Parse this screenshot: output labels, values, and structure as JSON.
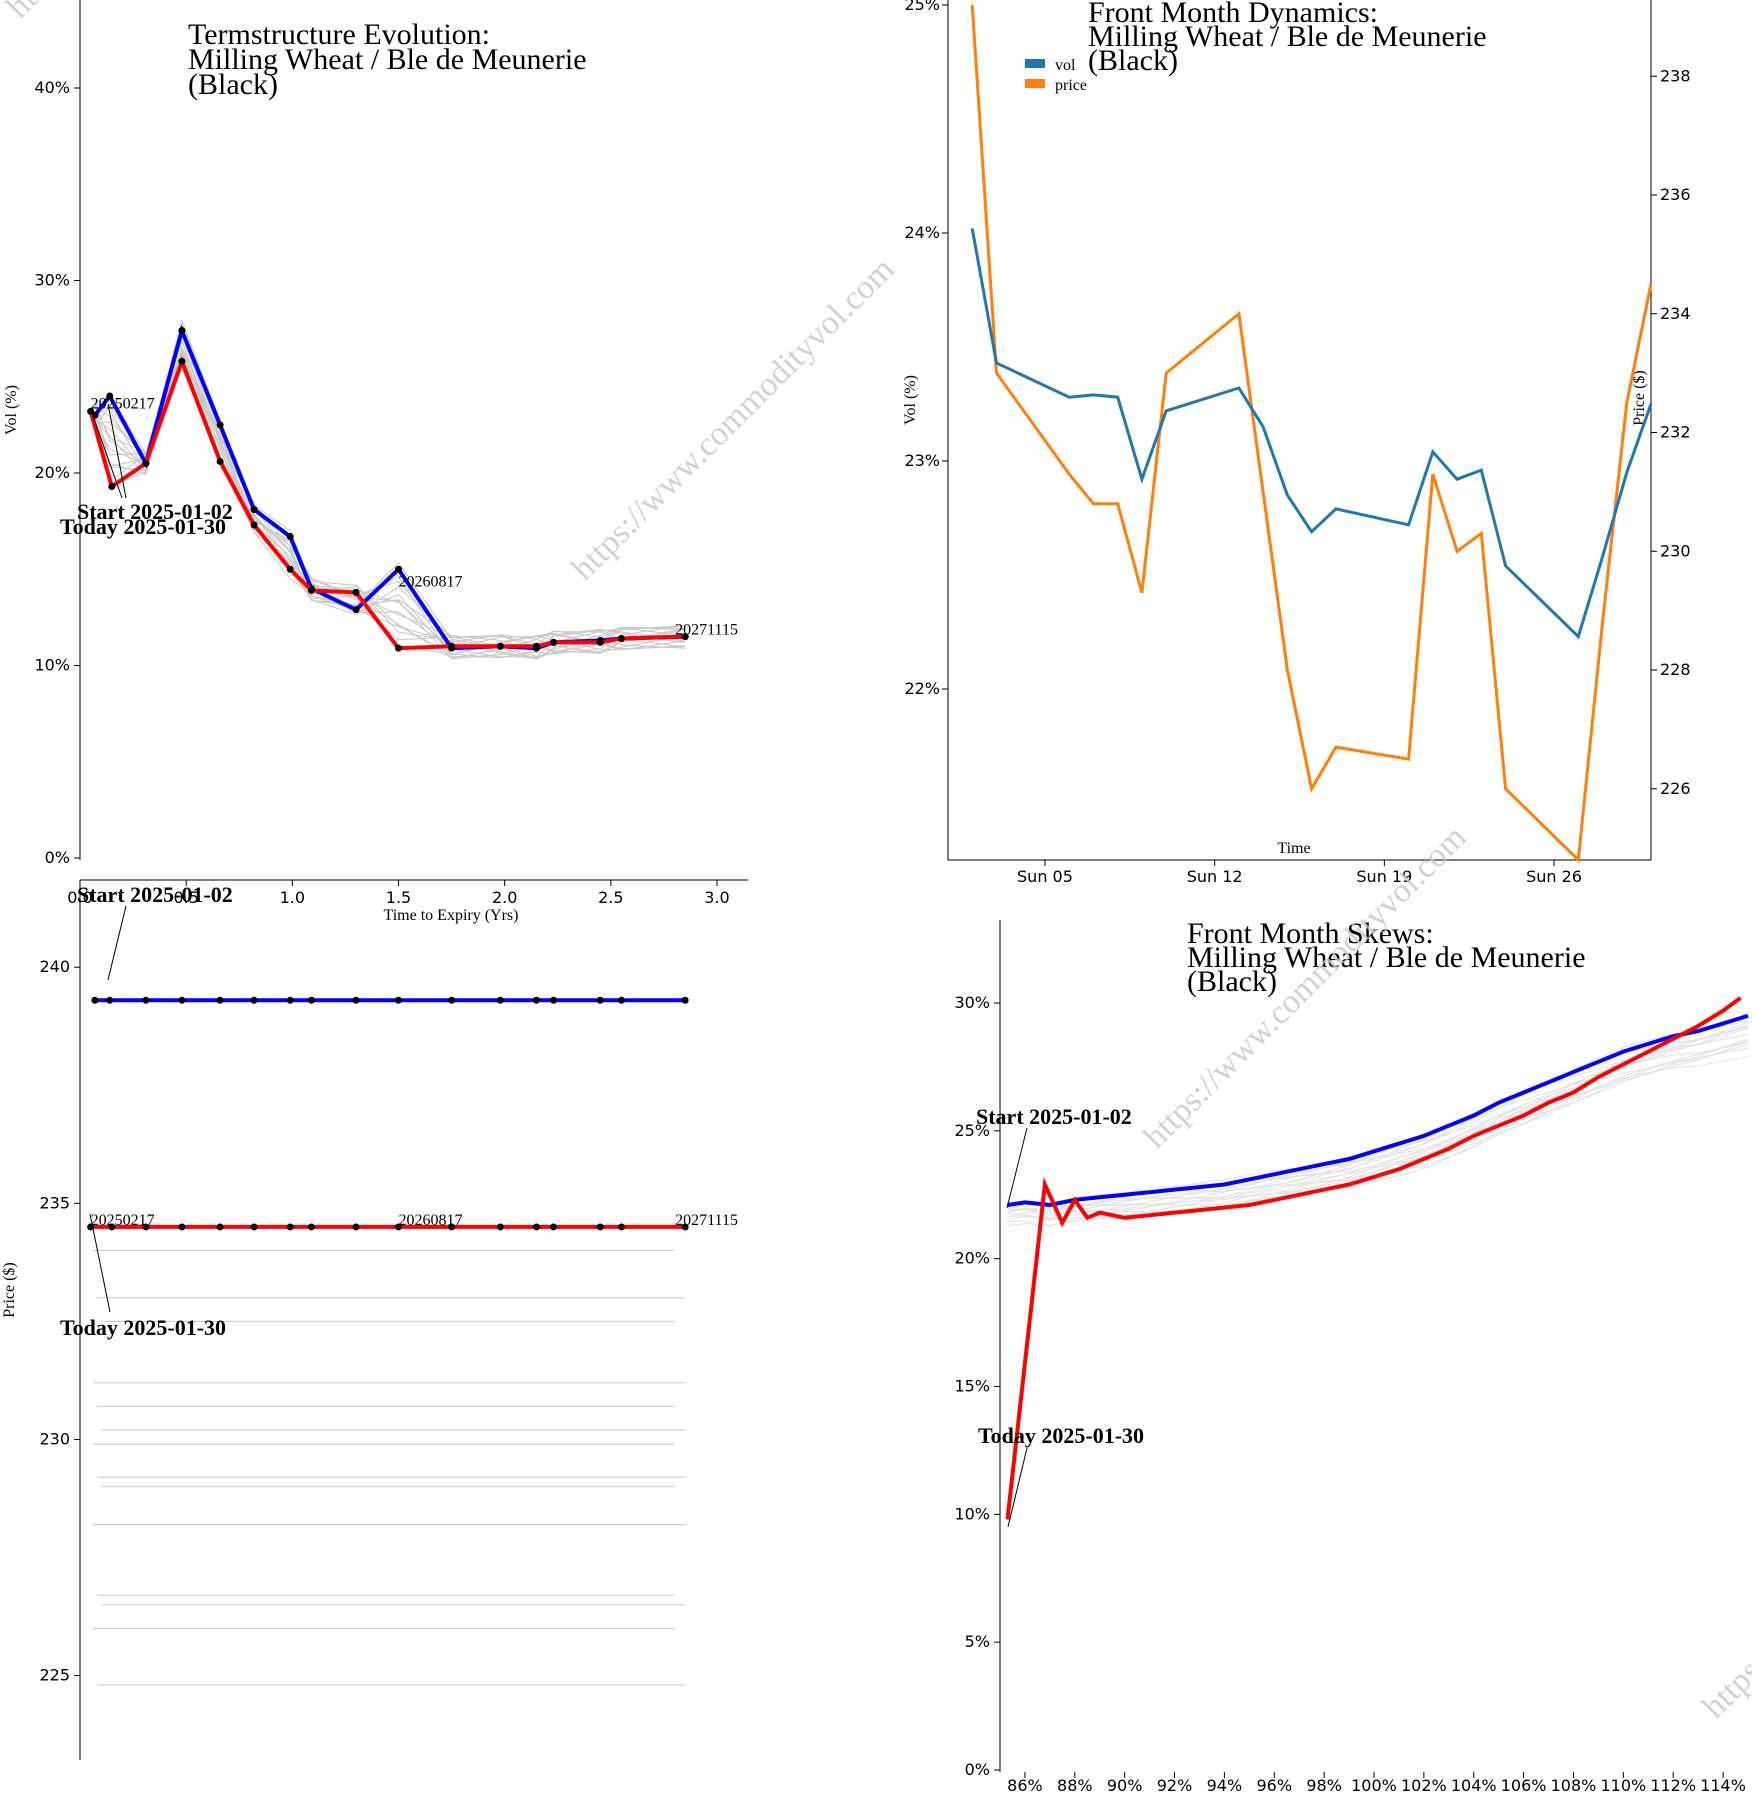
{
  "watermark": "https://www.commodityvol.com",
  "colors": {
    "blue": "#0000ff",
    "red": "#ff0000",
    "grey": "#c8c8c8",
    "vol": "#1f77b4",
    "price": "#ff7f0e"
  },
  "chart_data": [
    {
      "id": "termstructure",
      "type": "line",
      "title": [
        "Termstructure Evolution:",
        "Milling Wheat / Ble de Meunerie",
        "(Black)"
      ],
      "xlabel": "Time to Expiry (Yrs)",
      "ylabel": "Vol (%)",
      "xlim": [
        0.0,
        3.0
      ],
      "ylim": [
        0,
        44
      ],
      "x_ticks": [
        "0.0",
        "0.5",
        "1.0",
        "1.5",
        "2.0",
        "2.5",
        "3.0"
      ],
      "y_ticks": [
        "0%",
        "10%",
        "20%",
        "30%",
        "40%"
      ],
      "series": [
        {
          "role": "start",
          "x": [
            0.07,
            0.14,
            0.31,
            0.48,
            0.66,
            0.82,
            0.99,
            1.09,
            1.3,
            1.5,
            1.75,
            1.98,
            2.15,
            2.23,
            2.45,
            2.55,
            2.85
          ],
          "y": [
            23.0,
            24.0,
            20.5,
            27.4,
            22.5,
            18.1,
            16.7,
            14.0,
            12.9,
            15.0,
            10.9,
            11.0,
            10.9,
            11.2,
            11.3,
            11.4,
            11.5
          ]
        },
        {
          "role": "today",
          "x": [
            0.05,
            0.15,
            0.31,
            0.48,
            0.66,
            0.82,
            0.99,
            1.09,
            1.3,
            1.5,
            1.75,
            1.98,
            2.15,
            2.23,
            2.45,
            2.55,
            2.85
          ],
          "y": [
            23.2,
            19.3,
            20.5,
            25.8,
            20.6,
            17.3,
            15.0,
            13.9,
            13.8,
            10.9,
            11.0,
            11.0,
            11.0,
            11.2,
            11.2,
            11.4,
            11.5
          ]
        }
      ],
      "annotations": [
        {
          "text": "20250217",
          "x": 0.05,
          "y": 23.2
        },
        {
          "text": "20260817",
          "x": 1.5,
          "y": 13.9
        },
        {
          "text": "20271115",
          "x": 2.85,
          "y": 11.5
        },
        {
          "text": "Start 2025-01-02",
          "x": 0.05,
          "y": 17.8
        },
        {
          "text": "Today 2025-01-30",
          "x": 0.0,
          "y": 17.0
        }
      ]
    },
    {
      "id": "front_month_dynamics",
      "type": "line",
      "title": [
        "Front Month Dynamics:",
        "Milling Wheat / Ble de Meunerie",
        "(Black)"
      ],
      "xlabel": "Time",
      "ylabel": "Vol (%)",
      "ylabel_right": "Price ($)",
      "x_ticks": [
        "Sun 05",
        "Sun 12",
        "Sun 19",
        "Sun 26"
      ],
      "y_ticks": [
        "22%",
        "23%",
        "24%",
        "25%"
      ],
      "y_ticks_right": [
        "226",
        "228",
        "230",
        "232",
        "234",
        "236",
        "238"
      ],
      "ylim": [
        21.25,
        25.0
      ],
      "ylim_right": [
        224.8,
        239.2
      ],
      "legend": [
        "vol",
        "price"
      ],
      "x_days": [
        2,
        3,
        6,
        7,
        8,
        9,
        10,
        13,
        14,
        15,
        16,
        17,
        20,
        21,
        22,
        23,
        24,
        27,
        28,
        29,
        30
      ],
      "vol": [
        24.02,
        23.43,
        23.28,
        23.29,
        23.28,
        22.92,
        23.22,
        23.32,
        23.15,
        22.85,
        22.69,
        22.79,
        22.72,
        23.04,
        22.92,
        22.96,
        22.54,
        22.23,
        22.58,
        22.95,
        23.25
      ],
      "price": [
        239.2,
        233.0,
        231.3,
        230.8,
        230.8,
        229.3,
        233.0,
        234.0,
        231.0,
        228.0,
        226.0,
        226.7,
        226.5,
        231.3,
        230.0,
        230.3,
        226.0,
        224.8,
        228.8,
        232.5,
        234.5
      ]
    },
    {
      "id": "termstructure_price",
      "type": "line",
      "title": [],
      "ylabel": "Price ($)",
      "ylim": [
        223.0,
        241.0
      ],
      "y_ticks": [
        "225",
        "230",
        "235",
        "240"
      ],
      "series": [
        {
          "role": "start",
          "x": [
            0.07,
            0.14,
            0.31,
            0.48,
            0.66,
            0.82,
            0.99,
            1.09,
            1.3,
            1.5,
            1.75,
            1.98,
            2.15,
            2.23,
            2.45,
            2.55,
            2.85
          ],
          "y": [
            239.3,
            239.3,
            239.3,
            239.3,
            239.3,
            239.3,
            239.3,
            239.3,
            239.3,
            239.3,
            239.3,
            239.3,
            239.3,
            239.3,
            239.3,
            239.3,
            239.3
          ]
        },
        {
          "role": "today",
          "x": [
            0.05,
            0.15,
            0.31,
            0.48,
            0.66,
            0.82,
            0.99,
            1.09,
            1.3,
            1.5,
            1.75,
            1.98,
            2.15,
            2.23,
            2.45,
            2.55,
            2.85
          ],
          "y": [
            234.5,
            234.5,
            234.5,
            234.5,
            234.5,
            234.5,
            234.5,
            234.5,
            234.5,
            234.5,
            234.5,
            234.5,
            234.5,
            234.5,
            234.5,
            234.5,
            234.5
          ]
        }
      ],
      "history_levels": [
        234.0,
        233.0,
        232.5,
        231.2,
        230.7,
        230.2,
        229.9,
        229.2,
        229.0,
        228.2,
        226.7,
        226.5,
        226.0,
        224.8
      ],
      "annotations": [
        {
          "text": "20250217",
          "x": 0.05,
          "y": 234.5
        },
        {
          "text": "20260817",
          "x": 1.5,
          "y": 234.5
        },
        {
          "text": "20271115",
          "x": 2.85,
          "y": 234.5
        },
        {
          "text": "Start 2025-01-02"
        },
        {
          "text": "Today 2025-01-30"
        }
      ]
    },
    {
      "id": "front_month_skews",
      "type": "line",
      "title": [
        "Front Month Skews:",
        "Milling Wheat / Ble de Meunerie",
        "(Black)"
      ],
      "xlim": [
        85,
        115
      ],
      "ylim": [
        0,
        30.5
      ],
      "x_ticks": [
        "86%",
        "88%",
        "90%",
        "92%",
        "94%",
        "96%",
        "98%",
        "100%",
        "102%",
        "104%",
        "106%",
        "108%",
        "110%",
        "112%",
        "114%"
      ],
      "y_ticks": [
        "0%",
        "5%",
        "10%",
        "15%",
        "20%",
        "25%",
        "30%"
      ],
      "series": [
        {
          "role": "start",
          "x": [
            85.3,
            86,
            87,
            88,
            89,
            90,
            91,
            92,
            93,
            94,
            95,
            96,
            97,
            98,
            99,
            100,
            101,
            102,
            103,
            104,
            105,
            106,
            107,
            108,
            109,
            110,
            111,
            112,
            113,
            114,
            115
          ],
          "y": [
            22.1,
            22.2,
            22.1,
            22.3,
            22.4,
            22.5,
            22.6,
            22.7,
            22.8,
            22.9,
            23.1,
            23.3,
            23.5,
            23.7,
            23.9,
            24.2,
            24.5,
            24.8,
            25.2,
            25.6,
            26.1,
            26.5,
            26.9,
            27.3,
            27.7,
            28.1,
            28.4,
            28.7,
            28.9,
            29.2,
            29.5
          ]
        },
        {
          "role": "today",
          "x": [
            85.3,
            86.8,
            87.5,
            88,
            88.5,
            89,
            90,
            91,
            92,
            93,
            94,
            95,
            96,
            97,
            98,
            99,
            100,
            101,
            102,
            103,
            104,
            105,
            106,
            107,
            108,
            109,
            110,
            111,
            112,
            113,
            114,
            114.7
          ],
          "y": [
            9.8,
            22.9,
            21.4,
            22.3,
            21.6,
            21.8,
            21.6,
            21.7,
            21.8,
            21.9,
            22.0,
            22.1,
            22.3,
            22.5,
            22.7,
            22.9,
            23.2,
            23.5,
            23.9,
            24.3,
            24.8,
            25.2,
            25.6,
            26.1,
            26.5,
            27.1,
            27.6,
            28.1,
            28.6,
            29.1,
            29.7,
            30.2
          ]
        }
      ],
      "annotations": [
        {
          "text": "Start 2025-01-02"
        },
        {
          "text": "Today 2025-01-30"
        }
      ]
    }
  ]
}
